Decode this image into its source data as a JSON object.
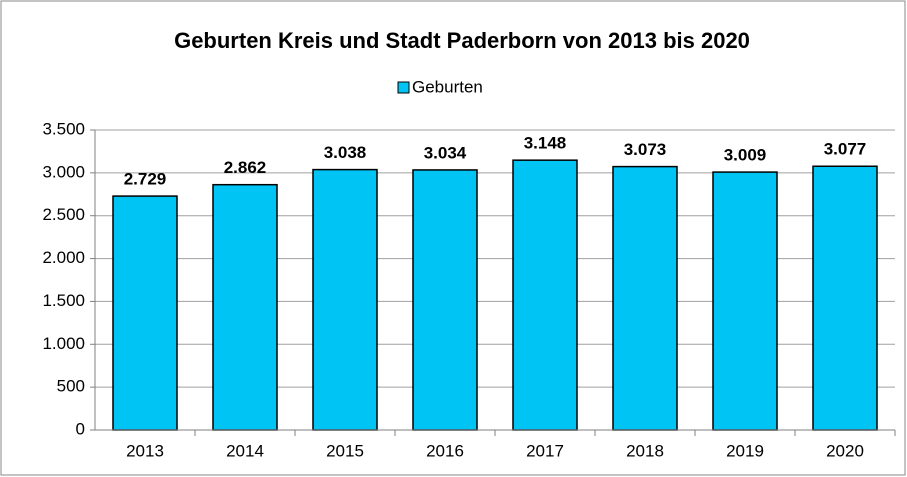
{
  "chart_data": {
    "type": "bar",
    "title": "Geburten Kreis und Stadt Paderborn von 2013 bis 2020",
    "categories": [
      "2013",
      "2014",
      "2015",
      "2016",
      "2017",
      "2018",
      "2019",
      "2020"
    ],
    "series": [
      {
        "name": "Geburten",
        "color": "#00c4f4",
        "values": [
          2729,
          2862,
          3038,
          3034,
          3148,
          3073,
          3009,
          3077
        ],
        "value_labels": [
          "2.729",
          "2.862",
          "3.038",
          "3.034",
          "3.148",
          "3.073",
          "3.009",
          "3.077"
        ]
      }
    ],
    "ylim": [
      0,
      3500
    ],
    "yticks": [
      0,
      500,
      {
        "value": 1000,
        "label": "1.000"
      },
      {
        "value": 1500,
        "label": "1.500"
      },
      {
        "value": 2000,
        "label": "2.000"
      },
      {
        "value": 2500,
        "label": "2.500"
      },
      {
        "value": 3000,
        "label": "3.000"
      },
      {
        "value": 3500,
        "label": "3.500"
      }
    ],
    "grid": true,
    "legend": "top"
  }
}
